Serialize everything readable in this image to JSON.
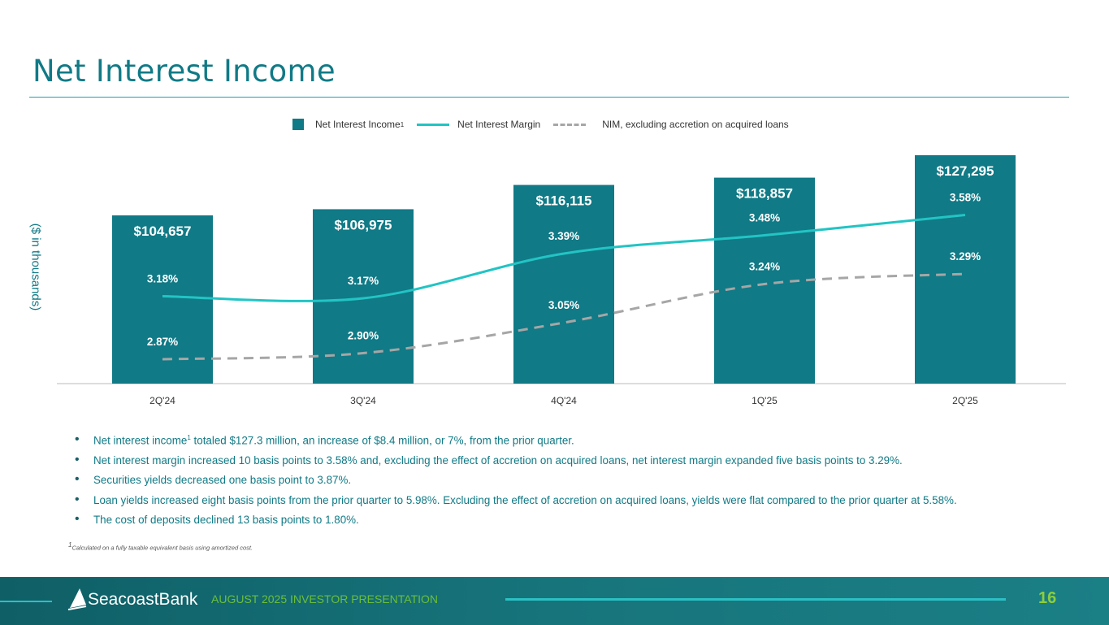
{
  "title": "Net Interest Income",
  "chart_data": {
    "type": "bar",
    "categories": [
      "2Q'24",
      "3Q'24",
      "4Q'24",
      "1Q'25",
      "2Q'25"
    ],
    "ylabel": "($ in thousands)",
    "legend_position": "top",
    "series": [
      {
        "name": "Net Interest Income",
        "superscript": "1",
        "type": "bar",
        "color": "#107a86",
        "values": [
          104657,
          106975,
          116115,
          118857,
          127295
        ],
        "labels": [
          "$104,657",
          "$106,975",
          "$116,115",
          "$118,857",
          "$127,295"
        ]
      },
      {
        "name": "Net Interest Margin",
        "type": "line",
        "color": "#22c4c4",
        "values": [
          3.18,
          3.17,
          3.39,
          3.48,
          3.58
        ],
        "labels": [
          "3.18%",
          "3.17%",
          "3.39%",
          "3.48%",
          "3.58%"
        ]
      },
      {
        "name": "NIM, excluding accretion on acquired loans",
        "type": "line",
        "style": "dashed",
        "color": "#a6a6a6",
        "values": [
          2.87,
          2.9,
          3.05,
          3.24,
          3.29
        ],
        "labels": [
          "2.87%",
          "2.90%",
          "3.05%",
          "3.24%",
          "3.29%"
        ]
      }
    ]
  },
  "bullets": [
    {
      "pre": "Net interest income",
      "sup": "1",
      "post": " totaled $127.3 million, an increase of $8.4 million, or 7%, from the prior quarter."
    },
    {
      "pre": "Net interest margin increased 10 basis points to 3.58% and, excluding the effect of accretion on acquired loans, net interest margin expanded five basis points to 3.29%.",
      "sup": "",
      "post": ""
    },
    {
      "pre": "Securities yields decreased one basis point to 3.87%.",
      "sup": "",
      "post": ""
    },
    {
      "pre": "Loan yields increased eight basis points from the prior quarter to 5.98%. Excluding the effect of accretion on acquired loans, yields were flat compared to the prior quarter at 5.58%.",
      "sup": "",
      "post": ""
    },
    {
      "pre": "The cost of deposits declined 13 basis points to 1.80%.",
      "sup": "",
      "post": ""
    }
  ],
  "footnote": {
    "sup": "1",
    "text": "Calculated on a fully taxable equivalent basis using amortized cost."
  },
  "footer": {
    "logo": "SeacoastBank",
    "tagline": "AUGUST 2025 INVESTOR PRESENTATION",
    "page": "16"
  }
}
